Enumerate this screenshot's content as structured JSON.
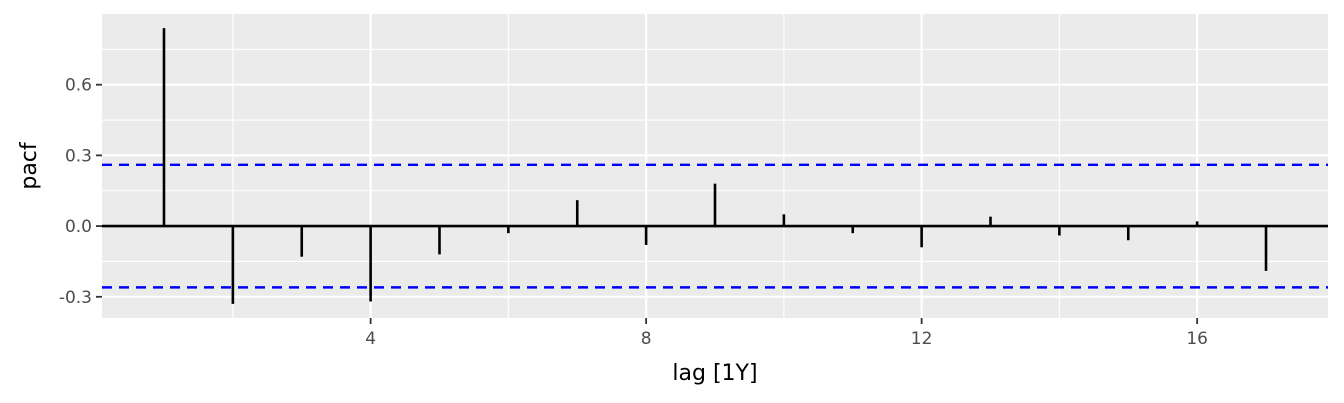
{
  "chart_data": {
    "type": "bar",
    "xlabel": "lag [1Y]",
    "ylabel": "pacf",
    "x_ticks": [
      4,
      8,
      12,
      16
    ],
    "y_ticks": [
      -0.3,
      0.0,
      0.3,
      0.6
    ],
    "y_tick_labels": [
      "-0.3",
      "0.0",
      "0.3",
      "0.6"
    ],
    "x_tick_labels": [
      "4",
      "8",
      "12",
      "16"
    ],
    "xlim": [
      0.1,
      17.9
    ],
    "ylim": [
      -0.39,
      0.9
    ],
    "lags": [
      1,
      2,
      3,
      4,
      5,
      6,
      7,
      8,
      9,
      10,
      11,
      12,
      13,
      14,
      15,
      16,
      17
    ],
    "values": [
      0.84,
      -0.33,
      -0.13,
      -0.32,
      -0.12,
      -0.03,
      0.11,
      -0.08,
      0.18,
      0.05,
      -0.03,
      -0.09,
      0.04,
      -0.04,
      -0.06,
      0.02,
      -0.19
    ],
    "ci_upper": 0.26,
    "ci_lower": -0.26,
    "ci_color": "#0000FF",
    "panel_color": "#EBEBEB",
    "grid": true
  }
}
